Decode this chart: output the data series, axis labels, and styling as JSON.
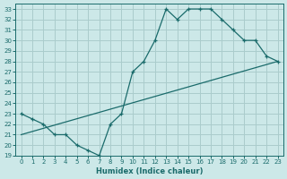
{
  "title": "",
  "xlabel": "Humidex (Indice chaleur)",
  "ylabel": "",
  "bg_color": "#cce8e8",
  "grid_color": "#aacccc",
  "line_color": "#1a6b6b",
  "x_data": [
    0,
    1,
    2,
    3,
    4,
    5,
    6,
    7,
    8,
    9,
    10,
    11,
    12,
    13,
    14,
    15,
    16,
    17,
    18,
    19,
    20,
    21,
    22,
    23
  ],
  "y_curve": [
    23.0,
    22.5,
    22.0,
    21.0,
    21.0,
    20.0,
    19.5,
    19.0,
    22.0,
    23.0,
    27.0,
    28.0,
    30.0,
    33.0,
    32.0,
    33.0,
    33.0,
    33.0,
    32.0,
    31.0,
    30.0,
    30.0,
    28.5,
    28.0
  ],
  "straight_line": [
    [
      0,
      21.0
    ],
    [
      23,
      28.0
    ]
  ],
  "xlim": [
    -0.5,
    23.5
  ],
  "ylim": [
    19,
    33.5
  ],
  "yticks": [
    19,
    20,
    21,
    22,
    23,
    24,
    25,
    26,
    27,
    28,
    29,
    30,
    31,
    32,
    33
  ],
  "xticks": [
    0,
    1,
    2,
    3,
    4,
    5,
    6,
    7,
    8,
    9,
    10,
    11,
    12,
    13,
    14,
    15,
    16,
    17,
    18,
    19,
    20,
    21,
    22,
    23
  ]
}
